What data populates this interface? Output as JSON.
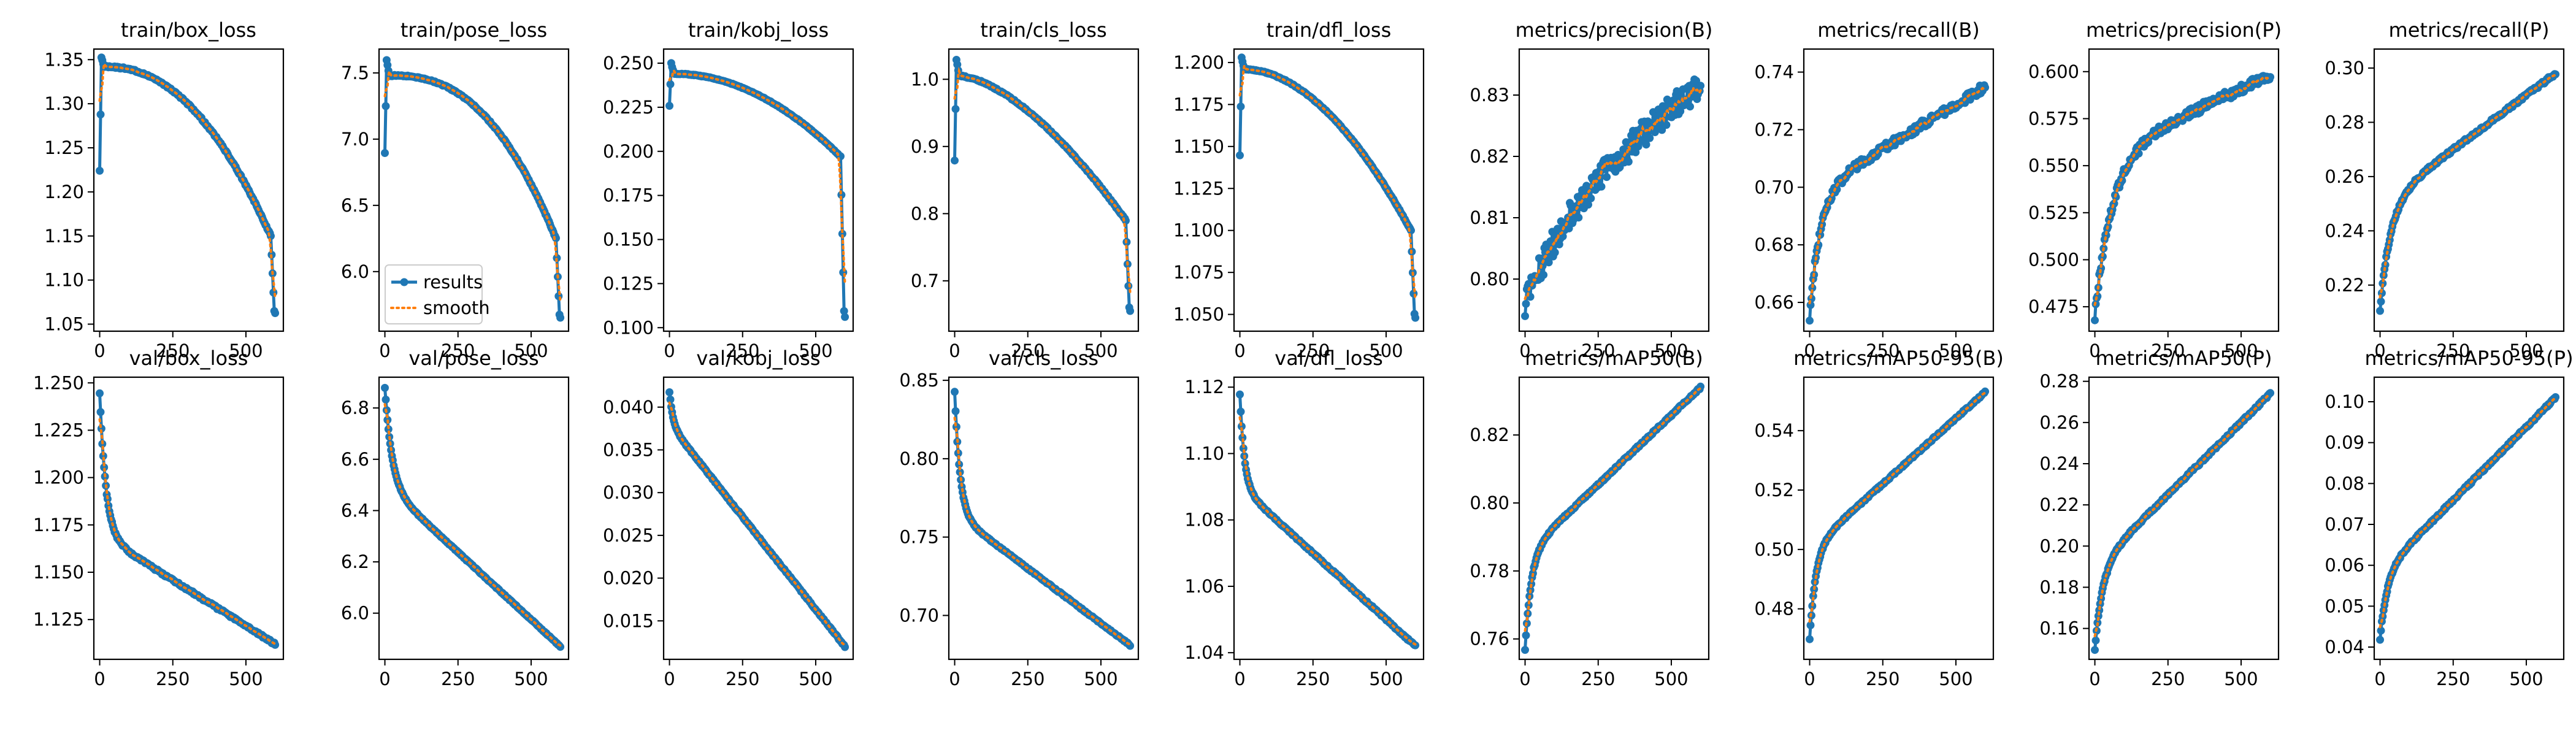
{
  "figure": {
    "colors": {
      "results": "#1f77b4",
      "smooth": "#ff7f0e",
      "axes": "#000000"
    },
    "legend": {
      "placement": "lower-left",
      "panel_index": 1,
      "entries": [
        "results",
        "smooth"
      ]
    }
  },
  "chart_data": [
    {
      "type": "line",
      "title": "train/box_loss",
      "xlim": [
        -20,
        628
      ],
      "ylim": [
        1.042,
        1.362
      ],
      "xticks": [
        0,
        250,
        500
      ],
      "yticks": [
        1.05,
        1.1,
        1.15,
        1.2,
        1.25,
        1.3,
        1.35
      ],
      "ytick_labels": [
        "1.05",
        "1.10",
        "1.15",
        "1.20",
        "1.25",
        "1.30",
        "1.35"
      ],
      "shape": {
        "start": 1.225,
        "peak": 1.352,
        "plateau": 1.342,
        "end_main": 1.15,
        "curv": 2.2,
        "tail": 1.062,
        "noise": 0.002
      },
      "series": [
        {
          "name": "results"
        },
        {
          "name": "smooth"
        }
      ]
    },
    {
      "type": "line",
      "title": "train/pose_loss",
      "xlim": [
        -20,
        628
      ],
      "ylim": [
        5.55,
        7.68
      ],
      "xticks": [
        0,
        250,
        500
      ],
      "yticks": [
        6.0,
        6.5,
        7.0,
        7.5
      ],
      "ytick_labels": [
        "6.0",
        "6.5",
        "7.0",
        "7.5"
      ],
      "shape": {
        "start": 6.9,
        "peak": 7.6,
        "plateau": 7.48,
        "end_main": 6.25,
        "curv": 2.5,
        "tail": 5.65,
        "noise": 0.01
      },
      "series": [
        {
          "name": "results"
        },
        {
          "name": "smooth"
        }
      ]
    },
    {
      "type": "line",
      "title": "train/kobj_loss",
      "xlim": [
        -20,
        628
      ],
      "ylim": [
        0.098,
        0.258
      ],
      "xticks": [
        0,
        250,
        500
      ],
      "yticks": [
        0.1,
        0.125,
        0.15,
        0.175,
        0.2,
        0.225,
        0.25
      ],
      "ytick_labels": [
        "0.100",
        "0.125",
        "0.150",
        "0.175",
        "0.200",
        "0.225",
        "0.250"
      ],
      "shape": {
        "start": 0.226,
        "peak": 0.25,
        "plateau": 0.244,
        "end_main": 0.197,
        "curv": 2.0,
        "tail": 0.106,
        "noise": 0.0004
      },
      "series": [
        {
          "name": "results"
        },
        {
          "name": "smooth"
        }
      ]
    },
    {
      "type": "line",
      "title": "train/cls_loss",
      "xlim": [
        -20,
        628
      ],
      "ylim": [
        0.625,
        1.045
      ],
      "xticks": [
        0,
        250,
        500
      ],
      "yticks": [
        0.7,
        0.8,
        0.9,
        1.0
      ],
      "ytick_labels": [
        "0.7",
        "0.8",
        "0.9",
        "1.0"
      ],
      "shape": {
        "start": 0.88,
        "peak": 1.03,
        "plateau": 1.005,
        "end_main": 0.79,
        "curv": 1.6,
        "tail": 0.655,
        "noise": 0.002
      },
      "series": [
        {
          "name": "results"
        },
        {
          "name": "smooth"
        }
      ]
    },
    {
      "type": "line",
      "title": "train/dfl_loss",
      "xlim": [
        -20,
        628
      ],
      "ylim": [
        1.04,
        1.208
      ],
      "xticks": [
        0,
        250,
        500
      ],
      "yticks": [
        1.05,
        1.075,
        1.1,
        1.125,
        1.15,
        1.175,
        1.2
      ],
      "ytick_labels": [
        "1.050",
        "1.075",
        "1.100",
        "1.125",
        "1.150",
        "1.175",
        "1.200"
      ],
      "shape": {
        "start": 1.145,
        "peak": 1.203,
        "plateau": 1.196,
        "end_main": 1.1,
        "curv": 1.9,
        "tail": 1.048,
        "noise": 0.0006
      },
      "series": [
        {
          "name": "results"
        },
        {
          "name": "smooth"
        }
      ]
    },
    {
      "type": "line",
      "title": "metrics/precision(B)",
      "xlim": [
        -20,
        628
      ],
      "ylim": [
        0.7915,
        0.8375
      ],
      "xticks": [
        0,
        250,
        500
      ],
      "yticks": [
        0.8,
        0.81,
        0.82,
        0.83
      ],
      "ytick_labels": [
        "0.80",
        "0.81",
        "0.82",
        "0.83"
      ],
      "shape": {
        "y0": 0.796,
        "y1": 0.809,
        "y2": 0.832,
        "rise": 0.25,
        "noise": 0.0045
      },
      "series": [
        {
          "name": "results"
        },
        {
          "name": "smooth"
        }
      ]
    },
    {
      "type": "line",
      "title": "metrics/recall(B)",
      "xlim": [
        -20,
        628
      ],
      "ylim": [
        0.65,
        0.748
      ],
      "xticks": [
        0,
        250,
        500
      ],
      "yticks": [
        0.66,
        0.68,
        0.7,
        0.72,
        0.74
      ],
      "ytick_labels": [
        "0.66",
        "0.68",
        "0.70",
        "0.72",
        "0.74"
      ],
      "shape": {
        "y0": 0.655,
        "y1": 0.698,
        "y2": 0.735,
        "rise": 0.06,
        "noise": 0.003
      },
      "series": [
        {
          "name": "results"
        },
        {
          "name": "smooth"
        }
      ]
    },
    {
      "type": "line",
      "title": "metrics/precision(P)",
      "xlim": [
        -20,
        628
      ],
      "ylim": [
        0.462,
        0.612
      ],
      "xticks": [
        0,
        250,
        500
      ],
      "yticks": [
        0.475,
        0.5,
        0.525,
        0.55,
        0.575,
        0.6
      ],
      "ytick_labels": [
        "0.475",
        "0.500",
        "0.525",
        "0.550",
        "0.575",
        "0.600"
      ],
      "shape": {
        "y0": 0.47,
        "y1": 0.555,
        "y2": 0.598,
        "rise": 0.1,
        "noise": 0.005
      },
      "series": [
        {
          "name": "results"
        },
        {
          "name": "smooth"
        }
      ]
    },
    {
      "type": "line",
      "title": "metrics/recall(P)",
      "xlim": [
        -20,
        628
      ],
      "ylim": [
        0.203,
        0.307
      ],
      "xticks": [
        0,
        250,
        500
      ],
      "yticks": [
        0.22,
        0.24,
        0.26,
        0.28,
        0.3
      ],
      "ytick_labels": [
        "0.22",
        "0.24",
        "0.26",
        "0.28",
        "0.30"
      ],
      "shape": {
        "y0": 0.211,
        "y1": 0.25,
        "y2": 0.298,
        "rise": 0.06,
        "noise": 0.0012
      },
      "series": [
        {
          "name": "results"
        },
        {
          "name": "smooth"
        }
      ]
    },
    {
      "type": "line",
      "title": "val/box_loss",
      "xlim": [
        -20,
        628
      ],
      "ylim": [
        1.104,
        1.253
      ],
      "xticks": [
        0,
        250,
        500
      ],
      "yticks": [
        1.125,
        1.15,
        1.175,
        1.2,
        1.225,
        1.25
      ],
      "ytick_labels": [
        "1.125",
        "1.150",
        "1.175",
        "1.200",
        "1.225",
        "1.250"
      ],
      "shape": {
        "v0": 1.245,
        "v1": 1.17,
        "v2": 1.112,
        "k": 0.035,
        "noise": 0.0012
      },
      "series": [
        {
          "name": "results"
        },
        {
          "name": "smooth"
        }
      ]
    },
    {
      "type": "line",
      "title": "val/pose_loss",
      "xlim": [
        -20,
        628
      ],
      "ylim": [
        5.82,
        6.92
      ],
      "xticks": [
        0,
        250,
        500
      ],
      "yticks": [
        6.0,
        6.2,
        6.4,
        6.6,
        6.8
      ],
      "ytick_labels": [
        "6.0",
        "6.2",
        "6.4",
        "6.6",
        "6.8"
      ],
      "shape": {
        "v0": 6.88,
        "v1": 6.5,
        "v2": 5.87,
        "k": 0.04,
        "noise": 0.004
      },
      "series": [
        {
          "name": "results"
        },
        {
          "name": "smooth"
        }
      ]
    },
    {
      "type": "line",
      "title": "val/kobj_loss",
      "xlim": [
        -20,
        628
      ],
      "ylim": [
        0.0105,
        0.0435
      ],
      "xticks": [
        0,
        250,
        500
      ],
      "yticks": [
        0.015,
        0.02,
        0.025,
        0.03,
        0.035,
        0.04
      ],
      "ytick_labels": [
        "0.015",
        "0.020",
        "0.025",
        "0.030",
        "0.035",
        "0.040"
      ],
      "shape": {
        "v0": 0.0418,
        "v1": 0.038,
        "v2": 0.012,
        "k": 0.02,
        "noise": 0.00015
      },
      "series": [
        {
          "name": "results"
        },
        {
          "name": "smooth"
        }
      ]
    },
    {
      "type": "line",
      "title": "val/cls_loss",
      "xlim": [
        -20,
        628
      ],
      "ylim": [
        0.672,
        0.852
      ],
      "xticks": [
        0,
        250,
        500
      ],
      "yticks": [
        0.7,
        0.75,
        0.8,
        0.85
      ],
      "ytick_labels": [
        "0.70",
        "0.75",
        "0.80",
        "0.85"
      ],
      "shape": {
        "v0": 0.843,
        "v1": 0.765,
        "v2": 0.681,
        "k": 0.03,
        "noise": 0.0008
      },
      "series": [
        {
          "name": "results"
        },
        {
          "name": "smooth"
        }
      ]
    },
    {
      "type": "line",
      "title": "val/dfl_loss",
      "xlim": [
        -20,
        628
      ],
      "ylim": [
        1.038,
        1.123
      ],
      "xticks": [
        0,
        250,
        500
      ],
      "yticks": [
        1.04,
        1.06,
        1.08,
        1.1,
        1.12
      ],
      "ytick_labels": [
        "1.04",
        "1.06",
        "1.08",
        "1.10",
        "1.12"
      ],
      "shape": {
        "v0": 1.118,
        "v1": 1.09,
        "v2": 1.042,
        "k": 0.025,
        "noise": 0.0005
      },
      "series": [
        {
          "name": "results"
        },
        {
          "name": "smooth"
        }
      ]
    },
    {
      "type": "line",
      "title": "metrics/mAP50(B)",
      "xlim": [
        -20,
        628
      ],
      "ylim": [
        0.754,
        0.837
      ],
      "xticks": [
        0,
        250,
        500
      ],
      "yticks": [
        0.76,
        0.78,
        0.8,
        0.82
      ],
      "ytick_labels": [
        "0.76",
        "0.78",
        "0.80",
        "0.82"
      ],
      "shape": {
        "y0": 0.757,
        "y1": 0.785,
        "y2": 0.834,
        "rise": 0.035,
        "noise": 0.0006
      },
      "series": [
        {
          "name": "results"
        },
        {
          "name": "smooth"
        }
      ]
    },
    {
      "type": "line",
      "title": "metrics/mAP50-95(B)",
      "xlim": [
        -20,
        628
      ],
      "ylim": [
        0.463,
        0.558
      ],
      "xticks": [
        0,
        250,
        500
      ],
      "yticks": [
        0.48,
        0.5,
        0.52,
        0.54
      ],
      "ytick_labels": [
        "0.48",
        "0.50",
        "0.52",
        "0.54"
      ],
      "shape": {
        "y0": 0.47,
        "y1": 0.5,
        "y2": 0.553,
        "rise": 0.035,
        "noise": 0.0006
      },
      "series": [
        {
          "name": "results"
        },
        {
          "name": "smooth"
        }
      ]
    },
    {
      "type": "line",
      "title": "metrics/mAP50(P)",
      "xlim": [
        -20,
        628
      ],
      "ylim": [
        0.145,
        0.282
      ],
      "xticks": [
        0,
        250,
        500
      ],
      "yticks": [
        0.16,
        0.18,
        0.2,
        0.22,
        0.24,
        0.26,
        0.28
      ],
      "ytick_labels": [
        "0.16",
        "0.18",
        "0.20",
        "0.22",
        "0.24",
        "0.26",
        "0.28"
      ],
      "shape": {
        "y0": 0.15,
        "y1": 0.19,
        "y2": 0.274,
        "rise": 0.045,
        "noise": 0.0012
      },
      "series": [
        {
          "name": "results"
        },
        {
          "name": "smooth"
        }
      ]
    },
    {
      "type": "line",
      "title": "metrics/mAP50-95(P)",
      "xlim": [
        -20,
        628
      ],
      "ylim": [
        0.037,
        0.106
      ],
      "xticks": [
        0,
        250,
        500
      ],
      "yticks": [
        0.04,
        0.05,
        0.06,
        0.07,
        0.08,
        0.09,
        0.1
      ],
      "ytick_labels": [
        "0.04",
        "0.05",
        "0.06",
        "0.07",
        "0.08",
        "0.09",
        "0.10"
      ],
      "shape": {
        "y0": 0.042,
        "y1": 0.058,
        "y2": 0.101,
        "rise": 0.04,
        "noise": 0.0006
      },
      "series": [
        {
          "name": "results"
        },
        {
          "name": "smooth"
        }
      ]
    }
  ]
}
